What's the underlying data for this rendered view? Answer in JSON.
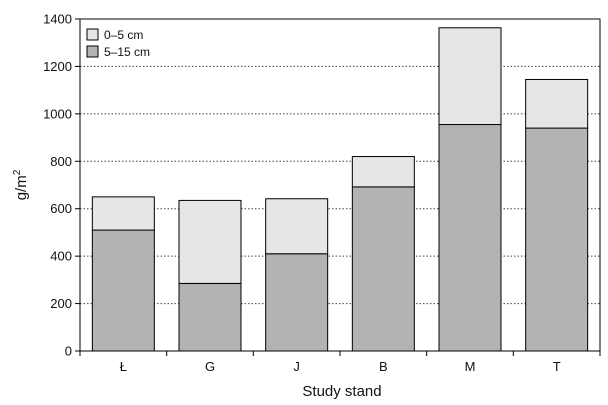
{
  "chart_data": {
    "type": "bar",
    "stacked": true,
    "categories": [
      "Ł",
      "G",
      "J",
      "B",
      "M",
      "T"
    ],
    "series": [
      {
        "name": "5–15 cm",
        "values": [
          510,
          285,
          410,
          692,
          955,
          940
        ],
        "color": "#b3b3b3"
      },
      {
        "name": "0–5 cm",
        "values": [
          140,
          350,
          232,
          128,
          408,
          205
        ],
        "color": "#e6e6e6"
      }
    ],
    "totals": [
      650,
      635,
      642,
      820,
      1363,
      1145
    ],
    "xlabel": "Study stand",
    "ylabel_base": "g/m",
    "ylabel_sup": "2",
    "ylim": [
      0,
      1400
    ],
    "yticks": [
      0,
      200,
      400,
      600,
      800,
      1000,
      1200,
      1400
    ],
    "grid": "horizontal-dotted",
    "legend": {
      "position": "top-left",
      "entries": [
        {
          "label": "0–5 cm",
          "color": "#e6e6e6"
        },
        {
          "label": "5–15 cm",
          "color": "#b3b3b3"
        }
      ]
    }
  }
}
